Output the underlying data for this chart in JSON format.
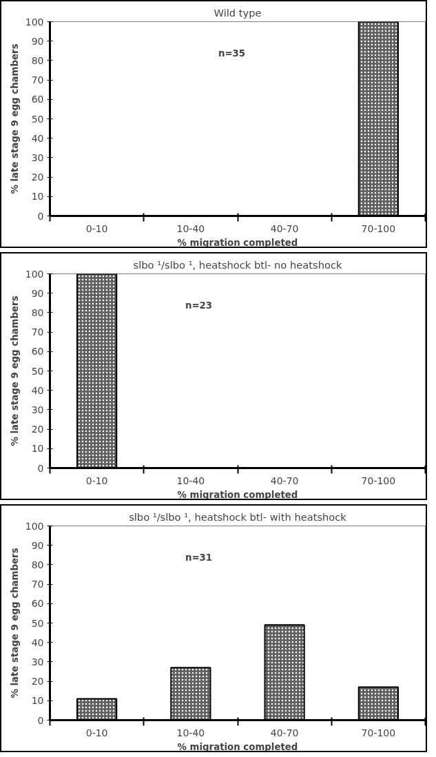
{
  "chart_data": [
    {
      "type": "bar",
      "title": "Wild type",
      "xlabel": "% migration completed",
      "ylabel": "% late stage 9 egg chambers",
      "categories": [
        "0-10",
        "10-40",
        "40-70",
        "70-100"
      ],
      "values": [
        0,
        0,
        0,
        100
      ],
      "color": "#606060",
      "ylim": [
        0,
        100
      ],
      "yticks": [
        0,
        10,
        20,
        30,
        40,
        50,
        60,
        70,
        80,
        90,
        100
      ],
      "grid": false,
      "annotations": [
        "n=35"
      ]
    },
    {
      "type": "bar",
      "title": "slbo ¹/slbo ¹, heatshock btl- no heatshock",
      "xlabel": "% migration completed",
      "ylabel": "% late stage 9 egg chambers",
      "categories": [
        "0-10",
        "10-40",
        "40-70",
        "70-100"
      ],
      "values": [
        100,
        0,
        0,
        0
      ],
      "color": "#606060",
      "ylim": [
        0,
        100
      ],
      "yticks": [
        0,
        10,
        20,
        30,
        40,
        50,
        60,
        70,
        80,
        90,
        100
      ],
      "grid": false,
      "annotations": [
        "n=23"
      ]
    },
    {
      "type": "bar",
      "title": "slbo ¹/slbo ¹, heatshock btl- with heatshock",
      "xlabel": "% migration completed",
      "ylabel": "% late stage 9 egg chambers",
      "categories": [
        "0-10",
        "10-40",
        "40-70",
        "70-100"
      ],
      "values": [
        11,
        27,
        49,
        17
      ],
      "color": "#606060",
      "ylim": [
        0,
        100
      ],
      "yticks": [
        0,
        10,
        20,
        30,
        40,
        50,
        60,
        70,
        80,
        90,
        100
      ],
      "grid": false,
      "annotations": [
        "n=31"
      ]
    }
  ]
}
